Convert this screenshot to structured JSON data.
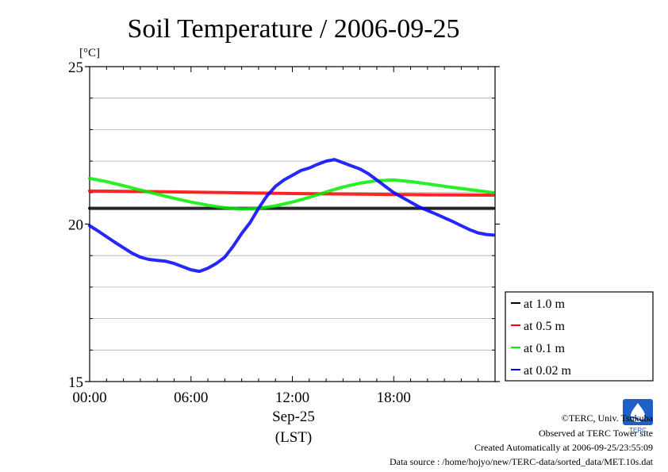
{
  "chart_data": {
    "type": "line",
    "title": "Soil Temperature / 2006-09-25",
    "ylabel": "[°C]",
    "xlabel_date": "Sep-25",
    "xlabel_unit": "(LST)",
    "ylim": [
      15,
      25
    ],
    "xlim": [
      0,
      24
    ],
    "yticks": [
      15,
      20,
      25
    ],
    "ygrid": [
      16,
      17,
      18,
      19,
      21,
      22,
      23,
      24
    ],
    "xticks": [
      {
        "value": 0,
        "label": "00:00"
      },
      {
        "value": 6,
        "label": "06:00"
      },
      {
        "value": 12,
        "label": "12:00"
      },
      {
        "value": 18,
        "label": "18:00"
      }
    ],
    "legend_position": "right",
    "series": [
      {
        "name": "at 1.0 m",
        "color": "#000000",
        "x": [
          0,
          6,
          12,
          18,
          23.9
        ],
        "y": [
          20.5,
          20.5,
          20.5,
          20.5,
          20.5
        ]
      },
      {
        "name": "at 0.5 m",
        "color": "#ff0000",
        "x": [
          0,
          4,
          8,
          12,
          16,
          20,
          23.9
        ],
        "y": [
          21.05,
          21.03,
          21.0,
          20.97,
          20.95,
          20.93,
          20.92
        ]
      },
      {
        "name": "at 0.1 m",
        "color": "#00ee00",
        "x": [
          0,
          1,
          2,
          3,
          4,
          5,
          6,
          7,
          8,
          9,
          10,
          11,
          12,
          13,
          14,
          15,
          16,
          17,
          18,
          19,
          20,
          21,
          22,
          23,
          23.9
        ],
        "y": [
          21.45,
          21.35,
          21.22,
          21.08,
          20.95,
          20.82,
          20.7,
          20.6,
          20.52,
          20.48,
          20.5,
          20.58,
          20.7,
          20.85,
          21.02,
          21.18,
          21.3,
          21.38,
          21.4,
          21.35,
          21.28,
          21.2,
          21.13,
          21.06,
          21.0
        ]
      },
      {
        "name": "at 0.02 m",
        "color": "#0000ff",
        "x": [
          0,
          0.5,
          1,
          1.5,
          2,
          2.5,
          3,
          3.5,
          4,
          4.5,
          5,
          5.5,
          6,
          6.5,
          7,
          7.5,
          8,
          8.5,
          9,
          9.5,
          10,
          10.5,
          11,
          11.5,
          12,
          12.5,
          13,
          13.5,
          14,
          14.5,
          15,
          15.5,
          16,
          16.5,
          17,
          17.5,
          18,
          18.5,
          19,
          19.5,
          20,
          20.5,
          21,
          21.5,
          22,
          22.5,
          23,
          23.5,
          23.9
        ],
        "y": [
          19.95,
          19.78,
          19.6,
          19.42,
          19.25,
          19.08,
          18.95,
          18.88,
          18.85,
          18.82,
          18.75,
          18.65,
          18.55,
          18.5,
          18.6,
          18.75,
          18.95,
          19.3,
          19.7,
          20.05,
          20.5,
          20.9,
          21.2,
          21.4,
          21.55,
          21.7,
          21.78,
          21.9,
          22.0,
          22.05,
          21.95,
          21.85,
          21.75,
          21.6,
          21.4,
          21.2,
          21.0,
          20.85,
          20.7,
          20.55,
          20.43,
          20.32,
          20.2,
          20.08,
          19.95,
          19.82,
          19.72,
          19.67,
          19.65
        ]
      }
    ]
  },
  "footer": {
    "copyright": "©TERC, Univ. Tsukuba",
    "observed": "Observed at TERC Tower site",
    "created": "Created Automatically at 2006-09-25/23:55:09",
    "source": "Data source : /home/hojyo/new/TERC-data/sorted_data/MET.10s.dat"
  },
  "logo": {
    "text": "TERC"
  }
}
